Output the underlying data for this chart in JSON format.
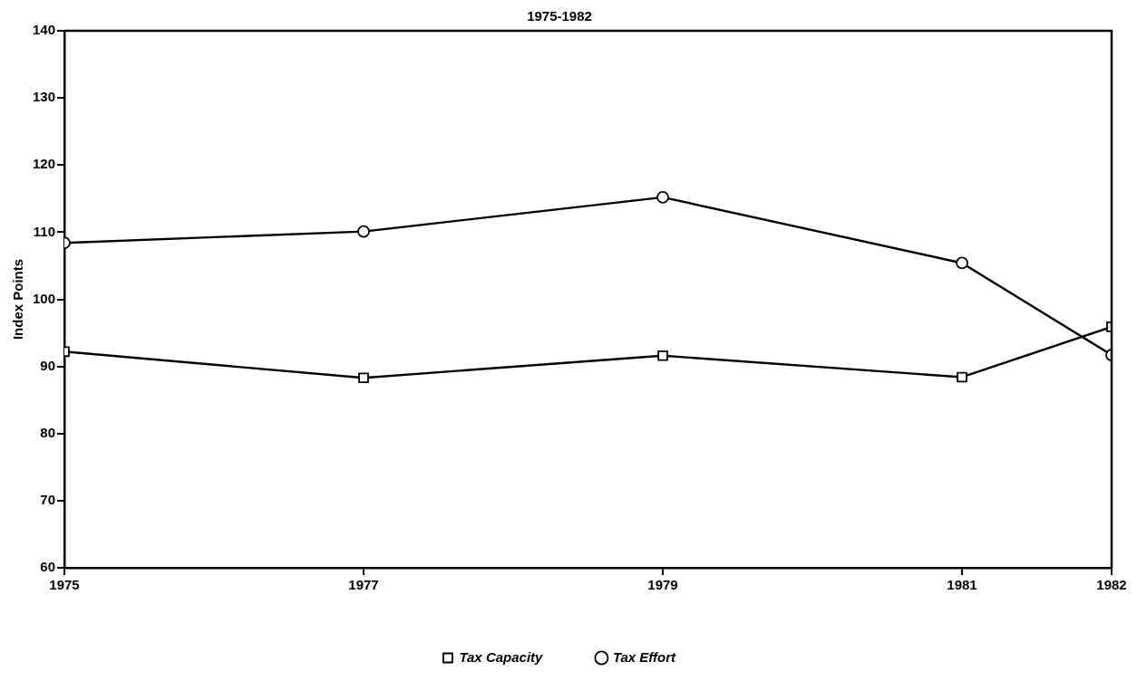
{
  "chart_data": {
    "type": "line",
    "title": "1975-1982",
    "ylabel": "Index Points",
    "x": [
      1975,
      1977,
      1979,
      1981,
      1982
    ],
    "xlim": [
      1975,
      1982
    ],
    "xticks": [
      1975,
      1977,
      1979,
      1981,
      1982
    ],
    "ylim": [
      60,
      140
    ],
    "yticks": [
      60,
      70,
      80,
      90,
      100,
      110,
      120,
      130,
      140
    ],
    "series": [
      {
        "name": "Tax Capacity",
        "color": "#000000",
        "marker": "square",
        "values": [
          92.2,
          88.3,
          91.6,
          88.4,
          95.9
        ]
      },
      {
        "name": "Tax Effort",
        "color": "#000000",
        "marker": "circle",
        "values": [
          108.4,
          110.1,
          115.2,
          105.4,
          91.7
        ]
      }
    ],
    "grid": false,
    "legend": "bottom",
    "line_style": "solid"
  }
}
